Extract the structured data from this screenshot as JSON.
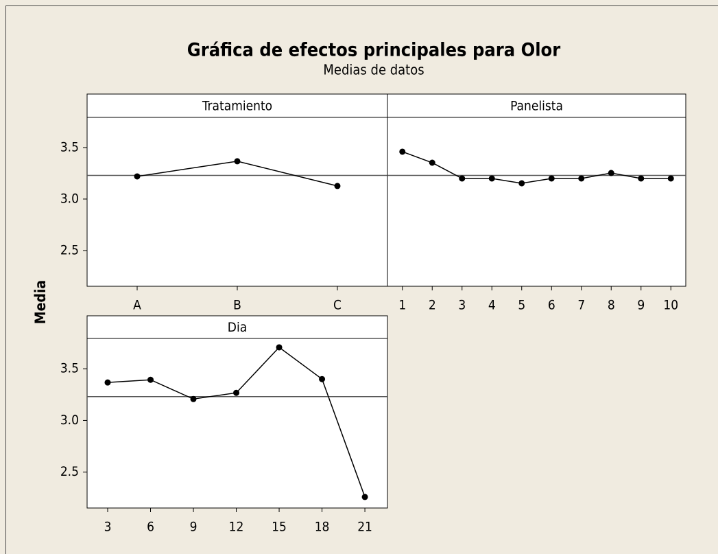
{
  "figure": {
    "title": "Gráfica de efectos principales para Olor",
    "subtitle": "Medias de datos",
    "ylabel": "Media"
  },
  "chart_data": [
    {
      "type": "line",
      "title": "Tratamiento",
      "categories": [
        "A",
        "B",
        "C"
      ],
      "values": [
        3.22,
        3.367,
        3.127
      ],
      "reference_line": 3.23,
      "color": "#000000",
      "ylim": [
        2.153,
        3.793
      ],
      "yticks": [
        2.5,
        {
          "value": 3,
          "label": "3.0"
        },
        3.5
      ]
    },
    {
      "type": "line",
      "title": "Panelista",
      "categories": [
        "1",
        "2",
        "3",
        "4",
        "5",
        "6",
        "7",
        "8",
        "9",
        "10"
      ],
      "values": [
        3.46,
        3.353,
        3.2,
        3.2,
        3.153,
        3.2,
        3.2,
        3.253,
        3.2,
        3.2
      ],
      "reference_line": 3.23,
      "color": "#000000",
      "ylim": [
        2.153,
        3.793
      ]
    },
    {
      "type": "line",
      "title": "Dia",
      "x": [
        3,
        6,
        9,
        12,
        15,
        18,
        21
      ],
      "values": [
        3.367,
        3.393,
        3.207,
        3.267,
        3.707,
        3.4,
        2.26
      ],
      "reference_line": 3.23,
      "color": "#000000",
      "xlim": [
        1.56,
        22.58
      ],
      "xticks": [
        3,
        6,
        9,
        12,
        15,
        18,
        21
      ],
      "ylim": [
        2.153,
        3.793
      ],
      "yticks": [
        2.5,
        {
          "value": 3,
          "label": "3.0"
        },
        3.5
      ]
    }
  ]
}
